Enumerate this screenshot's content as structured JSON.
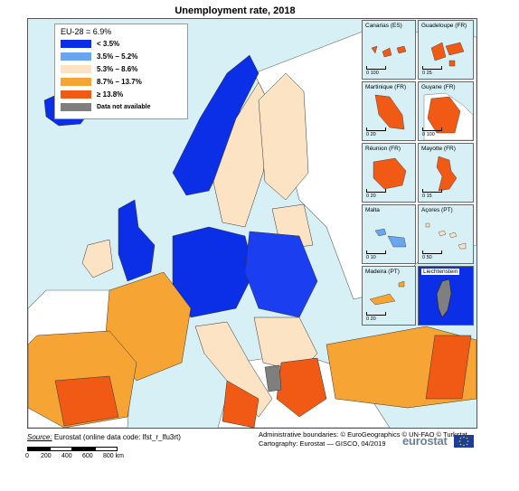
{
  "title": "Unemployment rate, 2018",
  "legend": {
    "eu_label": "EU-28 = 6.9%",
    "classes": [
      {
        "label": "< 3.5%",
        "color": "#0b2fe6"
      },
      {
        "label": "3.5% – 5.2%",
        "color": "#6aa6f0"
      },
      {
        "label": "5.3% – 8.6%",
        "color": "#fbe3c4"
      },
      {
        "label": "8.7% – 13.7%",
        "color": "#f6a534"
      },
      {
        "label": "≥ 13.8%",
        "color": "#f15a14"
      },
      {
        "label": "Data not available",
        "color": "#7f7f7f"
      }
    ]
  },
  "insets": [
    {
      "name": "Canarias (ES)",
      "scale": "0  100"
    },
    {
      "name": "Guadeloupe (FR)",
      "scale": "0  25"
    },
    {
      "name": "Martinique (FR)",
      "scale": "0  20"
    },
    {
      "name": "Guyane (FR)",
      "scale": "0  100"
    },
    {
      "name": "Réunion (FR)",
      "scale": "0  20"
    },
    {
      "name": "Mayotte (FR)",
      "scale": "0  15"
    },
    {
      "name": "Malta",
      "scale": "0  10"
    },
    {
      "name": "Açores (PT)",
      "scale": "0  50"
    },
    {
      "name": "Madeira (PT)",
      "scale": "0  20"
    },
    {
      "name": "Liechtenstein",
      "scale": ""
    }
  ],
  "footer": {
    "source_label": "Source:",
    "source_text": "Eurostat (online data code: lfst_r_lfu3rt)",
    "admin": "Administrative boundaries: © EuroGeographics © UN-FAO © Turkstat",
    "cartography": "Cartography: Eurostat — GISCO, 04/2019",
    "scale_ticks": [
      "0",
      "200",
      "400",
      "600",
      "800 km"
    ],
    "logo": "eurostat"
  },
  "colors": {
    "sea": "#d7f0f6",
    "non_eu": "#ffffff",
    "border": "#555555"
  }
}
